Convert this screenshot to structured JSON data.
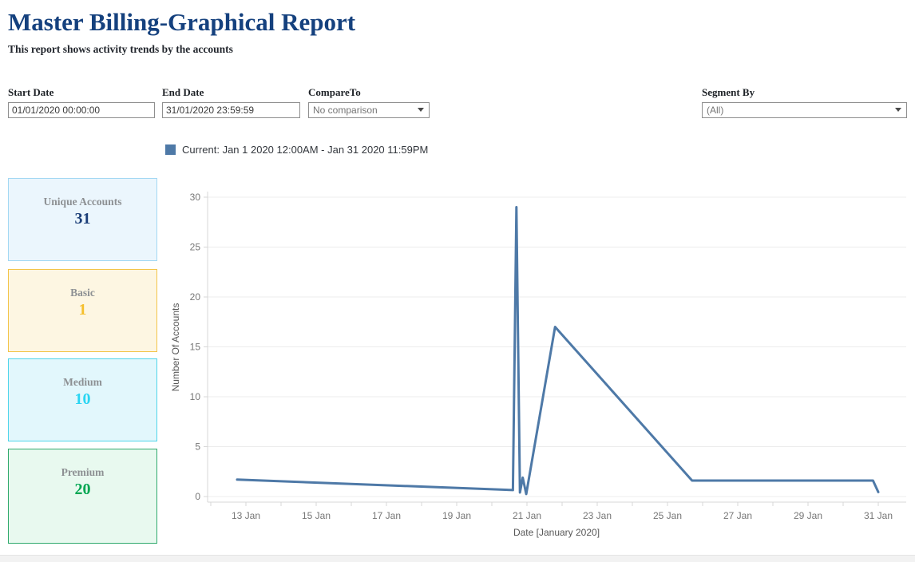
{
  "header": {
    "title": "Master Billing-Graphical Report",
    "subtitle": "This report shows activity trends by the accounts"
  },
  "filters": {
    "start_date": {
      "label": "Start Date",
      "value": "01/01/2020 00:00:00"
    },
    "end_date": {
      "label": "End Date",
      "value": "31/01/2020 23:59:59"
    },
    "compare_to": {
      "label": "CompareTo",
      "value": "No comparison"
    },
    "segment_by": {
      "label": "Segment By",
      "value": "(All)"
    }
  },
  "legend": {
    "swatch_color": "#4e79a7",
    "series_label": "Current: Jan 1 2020 12:00AM - Jan 31 2020 11:59PM"
  },
  "cards": [
    {
      "label": "Unique Accounts",
      "value": "31",
      "bg": "#ebf6fd",
      "border": "#a3d8f3",
      "value_color": "#1b3e78"
    },
    {
      "label": "Basic",
      "value": "1",
      "bg": "#fdf6e2",
      "border": "#f3c449",
      "value_color": "#f5bf2c"
    },
    {
      "label": "Medium",
      "value": "10",
      "bg": "#e2f7fc",
      "border": "#4fd5ea",
      "value_color": "#2ad5f2"
    },
    {
      "label": "Premium",
      "value": "20",
      "bg": "#e8f9ef",
      "border": "#2fa96c",
      "value_color": "#00a651"
    }
  ],
  "chart_data": {
    "type": "line",
    "title": "",
    "xlabel": "Date [January 2020]",
    "ylabel": "Number Of Accounts",
    "ylim": [
      0,
      30
    ],
    "y_ticks": [
      0,
      5,
      10,
      15,
      20,
      25,
      30
    ],
    "x_day_start": 12,
    "x_day_end": 31,
    "x_tick_labels": [
      {
        "day": 13,
        "label": "13 Jan"
      },
      {
        "day": 15,
        "label": "15 Jan"
      },
      {
        "day": 17,
        "label": "17 Jan"
      },
      {
        "day": 19,
        "label": "19 Jan"
      },
      {
        "day": 21,
        "label": "21 Jan"
      },
      {
        "day": 23,
        "label": "23 Jan"
      },
      {
        "day": 25,
        "label": "25 Jan"
      },
      {
        "day": 27,
        "label": "27 Jan"
      },
      {
        "day": 29,
        "label": "29 Jan"
      },
      {
        "day": 31,
        "label": "31 Jan"
      }
    ],
    "grid": true,
    "legend_position": "top",
    "series": [
      {
        "name": "Current: Jan 1 2020 12:00AM - Jan 31 2020 11:59PM",
        "color": "#4e79a7",
        "points": [
          {
            "day": 12.75,
            "value": 1.7
          },
          {
            "day": 20.6,
            "value": 0.65
          },
          {
            "day": 20.7,
            "value": 29
          },
          {
            "day": 20.8,
            "value": 0.4
          },
          {
            "day": 20.88,
            "value": 1.9
          },
          {
            "day": 20.98,
            "value": 0.25
          },
          {
            "day": 21.8,
            "value": 17
          },
          {
            "day": 25.7,
            "value": 1.6
          },
          {
            "day": 30.85,
            "value": 1.6
          },
          {
            "day": 31.0,
            "value": 0.45
          }
        ]
      }
    ],
    "colors": {
      "line": "#4e79a7",
      "grid": "#ececec",
      "axis": "#d7d7d7",
      "tick_label": "#767676"
    }
  }
}
